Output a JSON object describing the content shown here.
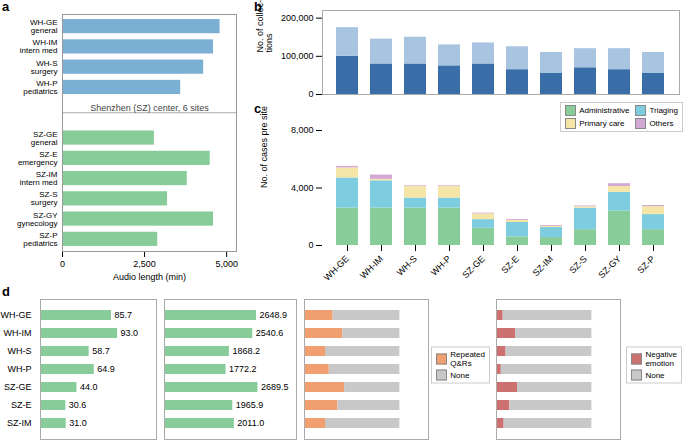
{
  "chart_data": [
    {
      "type": "bar",
      "title": "a",
      "orientation": "horizontal",
      "categories": [
        "WH-GE\ngeneral",
        "WH-IM\nintern med",
        "WH-S\nsurgery",
        "WH-P\npediatrics",
        "SZ-GE\ngeneral",
        "SZ-E\nemergency",
        "SZ-IM\nintern med",
        "SZ-S\nsurgery",
        "SZ-GY\ngynecology",
        "SZ-P\npediatrics"
      ],
      "values": [
        4800,
        4600,
        4300,
        3600,
        2800,
        4500,
        3800,
        3200,
        4600,
        2900
      ],
      "colors": [
        "#7bafd4",
        "#7bafd4",
        "#7bafd4",
        "#7bafd4",
        "#88cc99",
        "#88cc99",
        "#88cc99",
        "#88cc99",
        "#88cc99",
        "#88cc99"
      ],
      "xlabel": "Audio length (min)",
      "annotation": "Shenzhen (SZ) center, 6 sites",
      "xlim": [
        0,
        5300
      ],
      "xticks": [
        0,
        {
          "value": 2500,
          "label": "2,500"
        },
        {
          "value": 5000,
          "label": "5,000"
        }
      ]
    },
    {
      "type": "bar",
      "title": "b",
      "stacked": true,
      "tick_labels": "y",
      "categories": [
        null,
        null,
        null,
        null,
        null,
        null,
        null,
        null,
        null,
        null
      ],
      "series": [
        {
          "color": "#3a6ea8",
          "values": [
            100000,
            80000,
            80000,
            75000,
            80000,
            65000,
            55000,
            70000,
            65000,
            55000
          ]
        },
        {
          "color": "#a8c4e0",
          "values": [
            75000,
            65000,
            70000,
            55000,
            55000,
            60000,
            55000,
            50000,
            55000,
            55000
          ]
        }
      ],
      "ylabel": "No. of collec-\ntions",
      "ylim": [
        0,
        220000
      ],
      "yticks": [
        0,
        {
          "value": 100000,
          "label": "100,000"
        },
        {
          "value": 200000,
          "label": "200,000"
        }
      ]
    },
    {
      "type": "bar",
      "title": "c",
      "stacked": true,
      "legend": "upper right",
      "categories": [
        "WH-GE",
        "WH-IM",
        "WH-S",
        "WH-P",
        "SZ-GE",
        "SZ-E",
        "SZ-IM",
        "SZ-S",
        "SZ-GY",
        "SZ-P"
      ],
      "series": [
        {
          "name": "Administrative",
          "color": "#88cc99",
          "values": [
            2600,
            2600,
            2600,
            2600,
            1200,
            600,
            550,
            1100,
            2400,
            1100
          ]
        },
        {
          "name": "Triaging",
          "color": "#7ecce0",
          "values": [
            2100,
            1900,
            700,
            700,
            600,
            1000,
            700,
            1500,
            1300,
            1050
          ]
        },
        {
          "name": "Primary care",
          "color": "#f5e6a8",
          "values": [
            700,
            100,
            800,
            800,
            400,
            150,
            80,
            100,
            400,
            550
          ]
        },
        {
          "name": "Others",
          "color": "#d4a8d4",
          "values": [
            100,
            300,
            50,
            50,
            50,
            60,
            60,
            50,
            200,
            80
          ]
        }
      ],
      "ylabel": "No. of cases pre site",
      "ylim": [
        0,
        8000
      ],
      "yticks": [
        0,
        {
          "value": 4000,
          "label": "4,000"
        },
        {
          "value": 8000,
          "label": "8,000"
        }
      ]
    },
    {
      "type": "bar",
      "title": "d",
      "orientation": "horizontal",
      "tick_labels": "y",
      "data_labels": true,
      "categories": [
        "WH-GE",
        "WH-IM",
        "WH-S",
        "WH-P",
        "SZ-GE",
        "SZ-E",
        "SZ-IM"
      ],
      "values": [
        85.7,
        93.0,
        58.7,
        64.9,
        44.0,
        30.6,
        31.0
      ],
      "value_labels": [
        "85.7",
        "93.0",
        "58.7",
        "64.9",
        "44.0",
        "30.6",
        "31.0"
      ],
      "color": "#88cc99",
      "xlim": [
        0,
        140
      ],
      "xticks": []
    },
    {
      "type": "bar",
      "orientation": "horizontal",
      "tick_labels": false,
      "data_labels": true,
      "categories": [
        null,
        null,
        null,
        null,
        null,
        null,
        null
      ],
      "values": [
        2648.9,
        2540.6,
        1868.2,
        1772.2,
        2689.5,
        1965.9,
        2011.0
      ],
      "value_labels": [
        "2648.9",
        "2540.6",
        "1868.2",
        "1772.2",
        "2689.5",
        "1965.9",
        "2011.0"
      ],
      "color": "#88cc99",
      "xlim": [
        0,
        3800
      ],
      "xticks": []
    },
    {
      "type": "bar",
      "orientation": "horizontal",
      "tick_labels": false,
      "stacked": true,
      "legend": "center right",
      "categories": [
        null,
        null,
        null,
        null,
        null,
        null,
        null
      ],
      "series": [
        {
          "name": "Repeated\nQ&Rs",
          "color": "#f0a070",
          "values": [
            0.3,
            0.4,
            0.22,
            0.26,
            0.42,
            0.35,
            0.22
          ]
        },
        {
          "name": "None",
          "color": "#c8c8c8",
          "values": [
            0.7,
            0.6,
            0.78,
            0.74,
            0.58,
            0.65,
            0.78
          ]
        }
      ],
      "xlim": [
        0,
        1.3
      ],
      "xticks": []
    },
    {
      "type": "bar",
      "orientation": "horizontal",
      "tick_labels": false,
      "stacked": true,
      "legend": "center right",
      "categories": [
        null,
        null,
        null,
        null,
        null,
        null,
        null
      ],
      "series": [
        {
          "name": "Negative\nemotion",
          "color": "#cc7070",
          "values": [
            0.07,
            0.2,
            0.1,
            0.05,
            0.22,
            0.14,
            0.08
          ]
        },
        {
          "name": "None",
          "color": "#c8c8c8",
          "values": [
            0.93,
            0.8,
            0.9,
            0.95,
            0.78,
            0.86,
            0.92
          ]
        }
      ],
      "xlim": [
        0,
        1.3
      ],
      "xticks": []
    }
  ]
}
